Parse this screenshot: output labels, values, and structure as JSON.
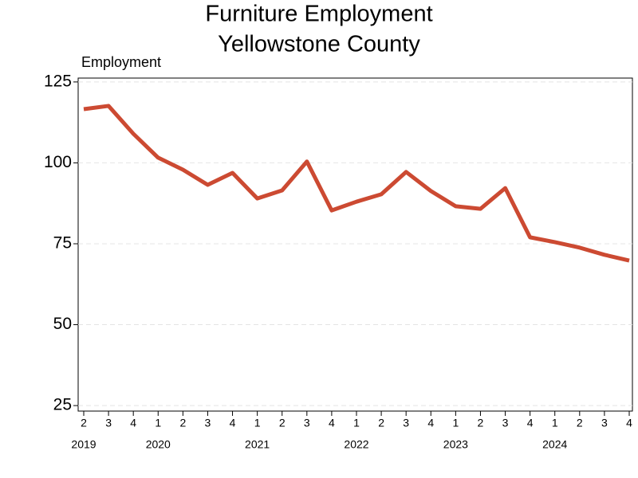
{
  "chart_data": {
    "type": "line",
    "title": "Furniture Employment",
    "subtitle": "Yellowstone County",
    "y_label": "Employment",
    "categories": [
      "2",
      "3",
      "4",
      "1",
      "2",
      "3",
      "4",
      "1",
      "2",
      "3",
      "4",
      "1",
      "2",
      "3",
      "4",
      "1",
      "2",
      "3",
      "4",
      "1",
      "2",
      "3",
      "4"
    ],
    "year_labels": [
      "2019",
      null,
      null,
      "2020",
      null,
      null,
      null,
      "2021",
      null,
      null,
      null,
      "2022",
      null,
      null,
      null,
      "2023",
      null,
      null,
      null,
      "2024",
      null,
      null,
      null
    ],
    "series": [
      {
        "name": "Employment",
        "color": "#cc4a32",
        "values": [
          116.6,
          117.6,
          109,
          101.6,
          97.9,
          93.2,
          96.9,
          89,
          91.5,
          100.4,
          85.3,
          88,
          90.3,
          97.2,
          91.3,
          86.6,
          85.8,
          92.2,
          77,
          75.5,
          73.8,
          71.6,
          69.8
        ]
      }
    ],
    "ylim": [
      23.3,
      126.2
    ],
    "yticks": [
      25,
      50,
      75,
      100,
      125
    ],
    "grid": true
  }
}
